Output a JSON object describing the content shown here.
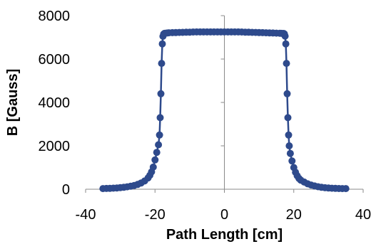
{
  "chart_data": {
    "type": "scatter",
    "title": "",
    "xlabel": "Path Length [cm]",
    "ylabel": "B [Gauss]",
    "xlim": [
      -40,
      40
    ],
    "ylim": [
      0,
      8000
    ],
    "xticks": [
      -40,
      -20,
      0,
      20,
      40
    ],
    "yticks": [
      0,
      2000,
      4000,
      6000,
      8000
    ],
    "grid": false,
    "legend": "none",
    "marker": "circle",
    "line": true,
    "color": "#2E4A8C",
    "series": [
      {
        "x": [
          -35,
          -34,
          -33,
          -32,
          -31,
          -30,
          -29,
          -28,
          -27,
          -26,
          -25,
          -24,
          -23,
          -22,
          -21.5,
          -21,
          -20.5,
          -20,
          -19.5,
          -19,
          -18.7,
          -18.5,
          -18.3,
          -18.1,
          -17.9,
          -17.7,
          -17.5,
          -17.3,
          -17.1,
          -16.5,
          -16,
          -15,
          -14,
          -13,
          -12,
          -11,
          -10,
          -9,
          -8,
          -7,
          -6,
          -5,
          -4,
          -3,
          -2,
          -1,
          0,
          1,
          2,
          3,
          4,
          5,
          6,
          7,
          8,
          9,
          10,
          11,
          12,
          13,
          14,
          15,
          16,
          16.5,
          17.1,
          17.3,
          17.5,
          17.7,
          17.9,
          18.1,
          18.3,
          18.5,
          18.7,
          19,
          19.5,
          20,
          20.5,
          21,
          21.5,
          22,
          23,
          24,
          25,
          26,
          27,
          28,
          29,
          30,
          31,
          32,
          33,
          34,
          35
        ],
        "y": [
          30,
          35,
          40,
          50,
          60,
          75,
          90,
          110,
          140,
          175,
          220,
          290,
          380,
          520,
          640,
          800,
          1020,
          1350,
          1700,
          2050,
          2500,
          3300,
          4400,
          5800,
          6700,
          7050,
          7150,
          7180,
          7190,
          7200,
          7210,
          7215,
          7220,
          7225,
          7230,
          7235,
          7240,
          7245,
          7250,
          7250,
          7250,
          7250,
          7250,
          7250,
          7250,
          7250,
          7250,
          7250,
          7250,
          7250,
          7250,
          7245,
          7240,
          7235,
          7230,
          7225,
          7220,
          7215,
          7210,
          7205,
          7200,
          7195,
          7190,
          7185,
          7180,
          7160,
          7060,
          6700,
          5800,
          4400,
          3300,
          2500,
          2000,
          1650,
          1300,
          1000,
          780,
          620,
          500,
          420,
          330,
          250,
          195,
          150,
          115,
          90,
          70,
          55,
          45,
          38,
          33,
          30,
          30
        ]
      }
    ]
  }
}
